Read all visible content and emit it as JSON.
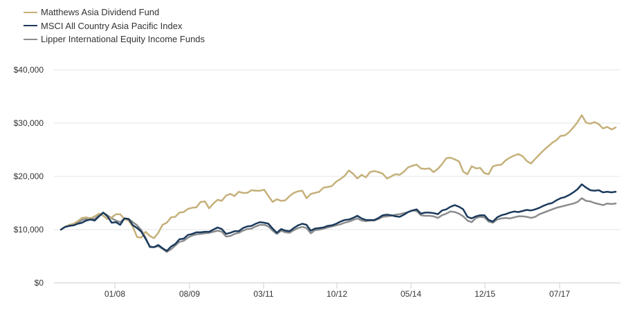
{
  "chart_data": {
    "type": "line",
    "x_ticks": [
      "01/08",
      "08/09",
      "03/11",
      "10/12",
      "05/14",
      "12/15",
      "07/17"
    ],
    "y_ticks": [
      "$0",
      "$10,000",
      "$20,000",
      "$30,000",
      "$40,000"
    ],
    "ylim": [
      0,
      40000
    ],
    "grid": true,
    "legend_position": "top-left",
    "series": [
      {
        "name": "Matthews Asia Dividend Fund",
        "color": "#c5b07a",
        "values": [
          10000,
          10500,
          10900,
          11100,
          11600,
          12200,
          12300,
          12100,
          12500,
          13000,
          12600,
          12000,
          12300,
          12900,
          12900,
          12000,
          11700,
          10500,
          8600,
          8500,
          9600,
          8800,
          8400,
          9400,
          10900,
          11300,
          12300,
          12400,
          13200,
          13300,
          13900,
          14100,
          14200,
          15200,
          15300,
          14000,
          14900,
          15600,
          15400,
          16400,
          16700,
          16300,
          17100,
          16900,
          16900,
          17400,
          17300,
          17300,
          17500,
          16300,
          15200,
          15700,
          15400,
          15500,
          16300,
          16900,
          17200,
          17300,
          15900,
          16700,
          16900,
          17100,
          17900,
          18000,
          18200,
          19000,
          19500,
          20100,
          21100,
          20500,
          19600,
          20300,
          19800,
          20800,
          21000,
          20800,
          20500,
          19600,
          20000,
          20400,
          20300,
          20900,
          21700,
          22000,
          22200,
          21500,
          21400,
          21500,
          20800,
          21400,
          22300,
          23400,
          23500,
          23200,
          22800,
          20900,
          20400,
          21900,
          21500,
          21600,
          20600,
          20400,
          21900,
          22100,
          22200,
          23000,
          23500,
          23900,
          24200,
          23800,
          22900,
          22400,
          23300,
          24100,
          24900,
          25600,
          26300,
          26800,
          27600,
          27700,
          28300,
          29200,
          30200,
          31500,
          30100,
          29900,
          30200,
          29800,
          29000,
          29300,
          28800,
          29200
        ]
      },
      {
        "name": "MSCI All Country Asia Pacific Index",
        "color": "#1b3a5c",
        "values": [
          10000,
          10500,
          10700,
          10800,
          11100,
          11300,
          11700,
          11900,
          11700,
          12500,
          13200,
          12500,
          11300,
          11400,
          10900,
          12100,
          12000,
          10800,
          10300,
          9600,
          8300,
          6800,
          6700,
          7100,
          6500,
          6000,
          6800,
          7300,
          8200,
          8300,
          9000,
          9200,
          9500,
          9500,
          9600,
          9600,
          10000,
          10400,
          10100,
          9200,
          9400,
          9700,
          9700,
          10300,
          10600,
          10700,
          11100,
          11400,
          11300,
          11100,
          10200,
          9400,
          10100,
          9800,
          9700,
          10300,
          10800,
          11100,
          10900,
          9800,
          10200,
          10300,
          10400,
          10700,
          10800,
          11100,
          11500,
          11800,
          11900,
          12200,
          12600,
          12100,
          11800,
          11800,
          11800,
          12200,
          12700,
          12800,
          12700,
          12500,
          12400,
          12800,
          13300,
          13600,
          13800,
          13000,
          13200,
          13200,
          13100,
          12900,
          13600,
          13800,
          14300,
          14600,
          14300,
          13800,
          12400,
          12100,
          12500,
          12700,
          12700,
          11800,
          11500,
          12300,
          12700,
          12900,
          13200,
          13400,
          13300,
          13500,
          13700,
          13600,
          13800,
          14100,
          14500,
          14800,
          15000,
          15500,
          15900,
          16100,
          16500,
          17000,
          17600,
          18500,
          17900,
          17400,
          17300,
          17400,
          17000,
          17100,
          17000,
          17100
        ]
      },
      {
        "name": "Lipper International Equity Income Funds",
        "color": "#8a8c8e",
        "values": [
          10000,
          10500,
          10800,
          10900,
          11300,
          11800,
          12000,
          12200,
          12000,
          12700,
          13200,
          12700,
          12100,
          11700,
          11400,
          12100,
          12000,
          11400,
          10800,
          9900,
          8500,
          6700,
          6700,
          6900,
          6400,
          5800,
          6300,
          7000,
          7700,
          7900,
          8500,
          8900,
          9100,
          9200,
          9300,
          9400,
          9600,
          9800,
          9600,
          8700,
          8800,
          9200,
          9400,
          9800,
          10100,
          10200,
          10600,
          10900,
          10900,
          10600,
          9800,
          9200,
          9800,
          9500,
          9400,
          9900,
          10300,
          10500,
          10300,
          9300,
          9900,
          10000,
          10200,
          10400,
          10600,
          10800,
          11000,
          11300,
          11500,
          11800,
          12100,
          11700,
          11600,
          11700,
          11700,
          12000,
          12400,
          12500,
          12600,
          12800,
          12900,
          13100,
          13300,
          13600,
          13500,
          12700,
          12600,
          12600,
          12500,
          12200,
          12700,
          13000,
          13400,
          13300,
          13000,
          12500,
          11700,
          11400,
          12200,
          12400,
          12300,
          11500,
          11300,
          11900,
          12100,
          12200,
          12100,
          12300,
          12500,
          12500,
          12400,
          12200,
          12400,
          12900,
          13200,
          13500,
          13800,
          14100,
          14300,
          14500,
          14700,
          14900,
          15200,
          15900,
          15400,
          15300,
          15000,
          14800,
          14600,
          14900,
          14800,
          14900
        ]
      }
    ]
  }
}
